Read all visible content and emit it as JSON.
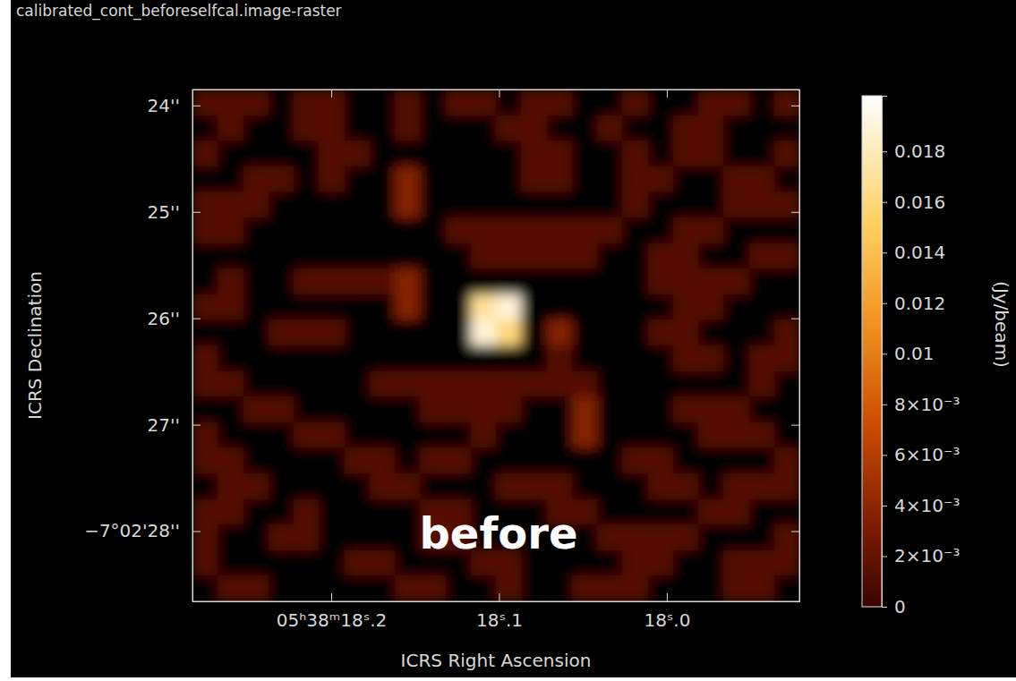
{
  "chart_data": {
    "type": "heatmap",
    "title": "calibrated_cont_beforeselfcal.image-raster",
    "x_label": "ICRS Right Ascension",
    "y_label": "ICRS Declination",
    "annotation": "before",
    "xlim": [
      18.2827,
      17.921
    ],
    "xticks": [
      {
        "value": 18.2,
        "label": "05ʰ38ᵐ18ˢ.2"
      },
      {
        "value": 18.1,
        "label": "18ˢ.1"
      },
      {
        "value": 18.0,
        "label": "18ˢ.0"
      }
    ],
    "ylim": [
      23.85,
      28.66
    ],
    "yticks": [
      {
        "value": 24,
        "label": "24''"
      },
      {
        "value": 25,
        "label": "25''"
      },
      {
        "value": 26,
        "label": "26''"
      },
      {
        "value": 27,
        "label": "27''"
      },
      {
        "value": 28,
        "label": "−7°02'28''"
      }
    ],
    "cells": [
      [
        0.0013,
        0.0013,
        0.0013,
        -0.001,
        0.0013,
        0.0013,
        -0.001,
        -0.001,
        0.0013,
        -0.001,
        0.0013,
        0.0013,
        -0.001,
        0.0013,
        0.0013,
        -0.001,
        -0.001,
        0.0013,
        -0.001,
        -0.001,
        0.0013,
        0.0013,
        -0.001,
        0.0013
      ],
      [
        -0.001,
        0.0013,
        -0.001,
        -0.001,
        0.0013,
        0.0013,
        -0.001,
        -0.001,
        0.0013,
        -0.001,
        -0.001,
        -0.001,
        0.0013,
        0.0013,
        -0.001,
        -0.001,
        0.0013,
        -0.001,
        -0.001,
        0.0013,
        0.0013,
        -0.001,
        -0.001,
        -0.001
      ],
      [
        0.0013,
        -0.001,
        -0.001,
        -0.001,
        -0.001,
        0.0013,
        0.0013,
        -0.001,
        -0.001,
        -0.001,
        -0.001,
        -0.001,
        -0.001,
        0.0013,
        0.0013,
        -0.001,
        -0.001,
        0.0013,
        -0.001,
        0.0013,
        0.0013,
        -0.001,
        -0.001,
        0.0013
      ],
      [
        -0.001,
        -0.001,
        0.0013,
        0.0013,
        -0.001,
        0.0013,
        -0.001,
        -0.001,
        0.0035,
        -0.001,
        -0.001,
        -0.001,
        -0.001,
        0.0013,
        0.0013,
        -0.001,
        -0.001,
        0.0013,
        0.0013,
        -0.001,
        -0.001,
        0.0013,
        0.0013,
        -0.001
      ],
      [
        0.0013,
        0.0013,
        0.0013,
        -0.001,
        -0.001,
        -0.001,
        -0.001,
        -0.001,
        0.0035,
        -0.001,
        -0.001,
        -0.001,
        -0.001,
        -0.001,
        -0.001,
        -0.001,
        -0.001,
        0.0013,
        -0.001,
        -0.001,
        -0.001,
        0.0013,
        0.0013,
        0.0013
      ],
      [
        0.0013,
        0.0013,
        -0.001,
        -0.001,
        -0.001,
        -0.001,
        -0.001,
        -0.001,
        -0.001,
        -0.001,
        0.0013,
        0.0013,
        0.0013,
        0.0013,
        0.0013,
        0.0013,
        0.0013,
        -0.001,
        -0.001,
        0.0013,
        0.0013,
        -0.001,
        -0.001,
        -0.001
      ],
      [
        -0.001,
        -0.001,
        -0.001,
        -0.001,
        -0.001,
        -0.001,
        -0.001,
        -0.001,
        -0.001,
        -0.001,
        -0.001,
        0.0013,
        0.0013,
        0.0013,
        0.0013,
        0.0013,
        -0.001,
        -0.001,
        0.0013,
        0.0013,
        -0.001,
        -0.001,
        0.0013,
        0.0013
      ],
      [
        -0.001,
        0.0013,
        -0.001,
        -0.001,
        0.0013,
        0.0013,
        0.0013,
        0.0013,
        0.0035,
        -0.001,
        -0.001,
        -0.001,
        -0.001,
        -0.001,
        -0.001,
        -0.001,
        -0.001,
        -0.001,
        0.0013,
        0.0013,
        0.0013,
        0.0013,
        -0.001,
        -0.001
      ],
      [
        0.0013,
        0.0013,
        -0.001,
        -0.001,
        -0.001,
        -0.001,
        -0.001,
        -0.001,
        0.0035,
        -0.001,
        -0.001,
        0.017,
        0.019,
        -0.001,
        -0.001,
        -0.001,
        -0.001,
        -0.001,
        -0.001,
        0.0013,
        0.0013,
        -0.001,
        -0.001,
        -0.001
      ],
      [
        -0.001,
        -0.001,
        -0.001,
        0.0013,
        0.0013,
        0.0013,
        -0.001,
        -0.001,
        -0.001,
        -0.001,
        -0.001,
        0.019,
        0.016,
        -0.001,
        0.0035,
        -0.001,
        -0.001,
        -0.001,
        0.0013,
        0.0013,
        -0.001,
        -0.001,
        -0.001,
        0.0013
      ],
      [
        0.0013,
        -0.001,
        -0.001,
        -0.001,
        -0.001,
        -0.001,
        -0.001,
        -0.001,
        -0.001,
        -0.001,
        -0.001,
        -0.001,
        -0.001,
        -0.001,
        0.0013,
        -0.001,
        -0.001,
        -0.001,
        -0.001,
        0.0013,
        0.0013,
        -0.001,
        0.0013,
        0.0013
      ],
      [
        0.0013,
        0.0013,
        -0.001,
        -0.001,
        -0.001,
        -0.001,
        -0.001,
        0.0013,
        0.0013,
        0.0013,
        0.0013,
        0.0013,
        0.0013,
        0.0013,
        0.0013,
        0.0013,
        -0.001,
        -0.001,
        -0.001,
        -0.001,
        -0.001,
        -0.001,
        0.0013,
        -0.001
      ],
      [
        -0.001,
        -0.001,
        0.0013,
        0.0013,
        -0.001,
        -0.001,
        -0.001,
        -0.001,
        -0.001,
        0.0013,
        0.0013,
        0.0013,
        0.0013,
        -0.001,
        -0.001,
        0.0035,
        -0.001,
        -0.001,
        -0.001,
        0.0013,
        0.0013,
        0.0013,
        -0.001,
        -0.001
      ],
      [
        0.0013,
        -0.001,
        -0.001,
        -0.001,
        0.0013,
        0.0013,
        -0.001,
        -0.001,
        -0.001,
        -0.001,
        -0.001,
        0.0013,
        -0.001,
        -0.001,
        -0.001,
        0.0035,
        -0.001,
        -0.001,
        -0.001,
        -0.001,
        0.0013,
        0.0013,
        0.0013,
        -0.001
      ],
      [
        0.0013,
        0.0013,
        -0.001,
        -0.001,
        -0.001,
        -0.001,
        0.0013,
        0.0013,
        -0.001,
        0.0013,
        0.0013,
        -0.001,
        -0.001,
        -0.001,
        -0.001,
        -0.001,
        -0.001,
        0.0013,
        0.0013,
        -0.001,
        -0.001,
        -0.001,
        -0.001,
        0.0013
      ],
      [
        -0.001,
        0.0013,
        0.0013,
        -0.001,
        -0.001,
        -0.001,
        -0.001,
        0.0013,
        0.0013,
        -0.001,
        -0.001,
        -0.001,
        0.0013,
        0.0013,
        0.0013,
        -0.001,
        -0.001,
        -0.001,
        0.0013,
        0.0013,
        -0.001,
        0.0013,
        0.0013,
        0.0013
      ],
      [
        0.0013,
        0.0013,
        -0.001,
        -0.001,
        0.0013,
        -0.001,
        -0.001,
        -0.001,
        -0.001,
        0.0013,
        0.0013,
        -0.001,
        -0.001,
        -0.001,
        0.0013,
        0.0013,
        -0.001,
        -0.001,
        -0.001,
        -0.001,
        0.0013,
        0.0013,
        -0.001,
        -0.001
      ],
      [
        0.0013,
        -0.001,
        -0.001,
        0.0013,
        0.0013,
        -0.001,
        -0.001,
        -0.001,
        -0.001,
        0.0013,
        0.0013,
        -0.001,
        -0.001,
        -0.001,
        -0.001,
        -0.001,
        0.0013,
        0.0013,
        0.0013,
        0.0013,
        -0.001,
        -0.001,
        -0.001,
        0.0013
      ],
      [
        0.0013,
        -0.001,
        -0.001,
        -0.001,
        -0.001,
        -0.001,
        0.0013,
        0.0013,
        -0.001,
        -0.001,
        -0.001,
        0.0013,
        0.0013,
        -0.001,
        -0.001,
        -0.001,
        -0.001,
        0.0013,
        0.0013,
        -0.001,
        -0.001,
        0.0013,
        0.0013,
        0.0013
      ],
      [
        -0.001,
        0.0013,
        0.0013,
        -0.001,
        -0.001,
        -0.001,
        -0.001,
        -0.001,
        0.0013,
        0.0013,
        -0.001,
        -0.001,
        0.0013,
        -0.001,
        -0.001,
        0.0013,
        0.0013,
        0.0013,
        -0.001,
        -0.001,
        -0.001,
        0.0013,
        0.0013,
        -0.001
      ]
    ],
    "colorbar": {
      "label": "(Jy/beam)",
      "range": [
        0,
        0.0202
      ],
      "ticks": [
        0,
        {
          "value": 0.002,
          "label": "2×10⁻³"
        },
        {
          "value": 0.004,
          "label": "4×10⁻³"
        },
        {
          "value": 0.006,
          "label": "6×10⁻³"
        },
        {
          "value": 0.008,
          "label": "8×10⁻³"
        },
        0.01,
        0.012,
        0.014,
        0.016,
        0.018
      ]
    }
  }
}
